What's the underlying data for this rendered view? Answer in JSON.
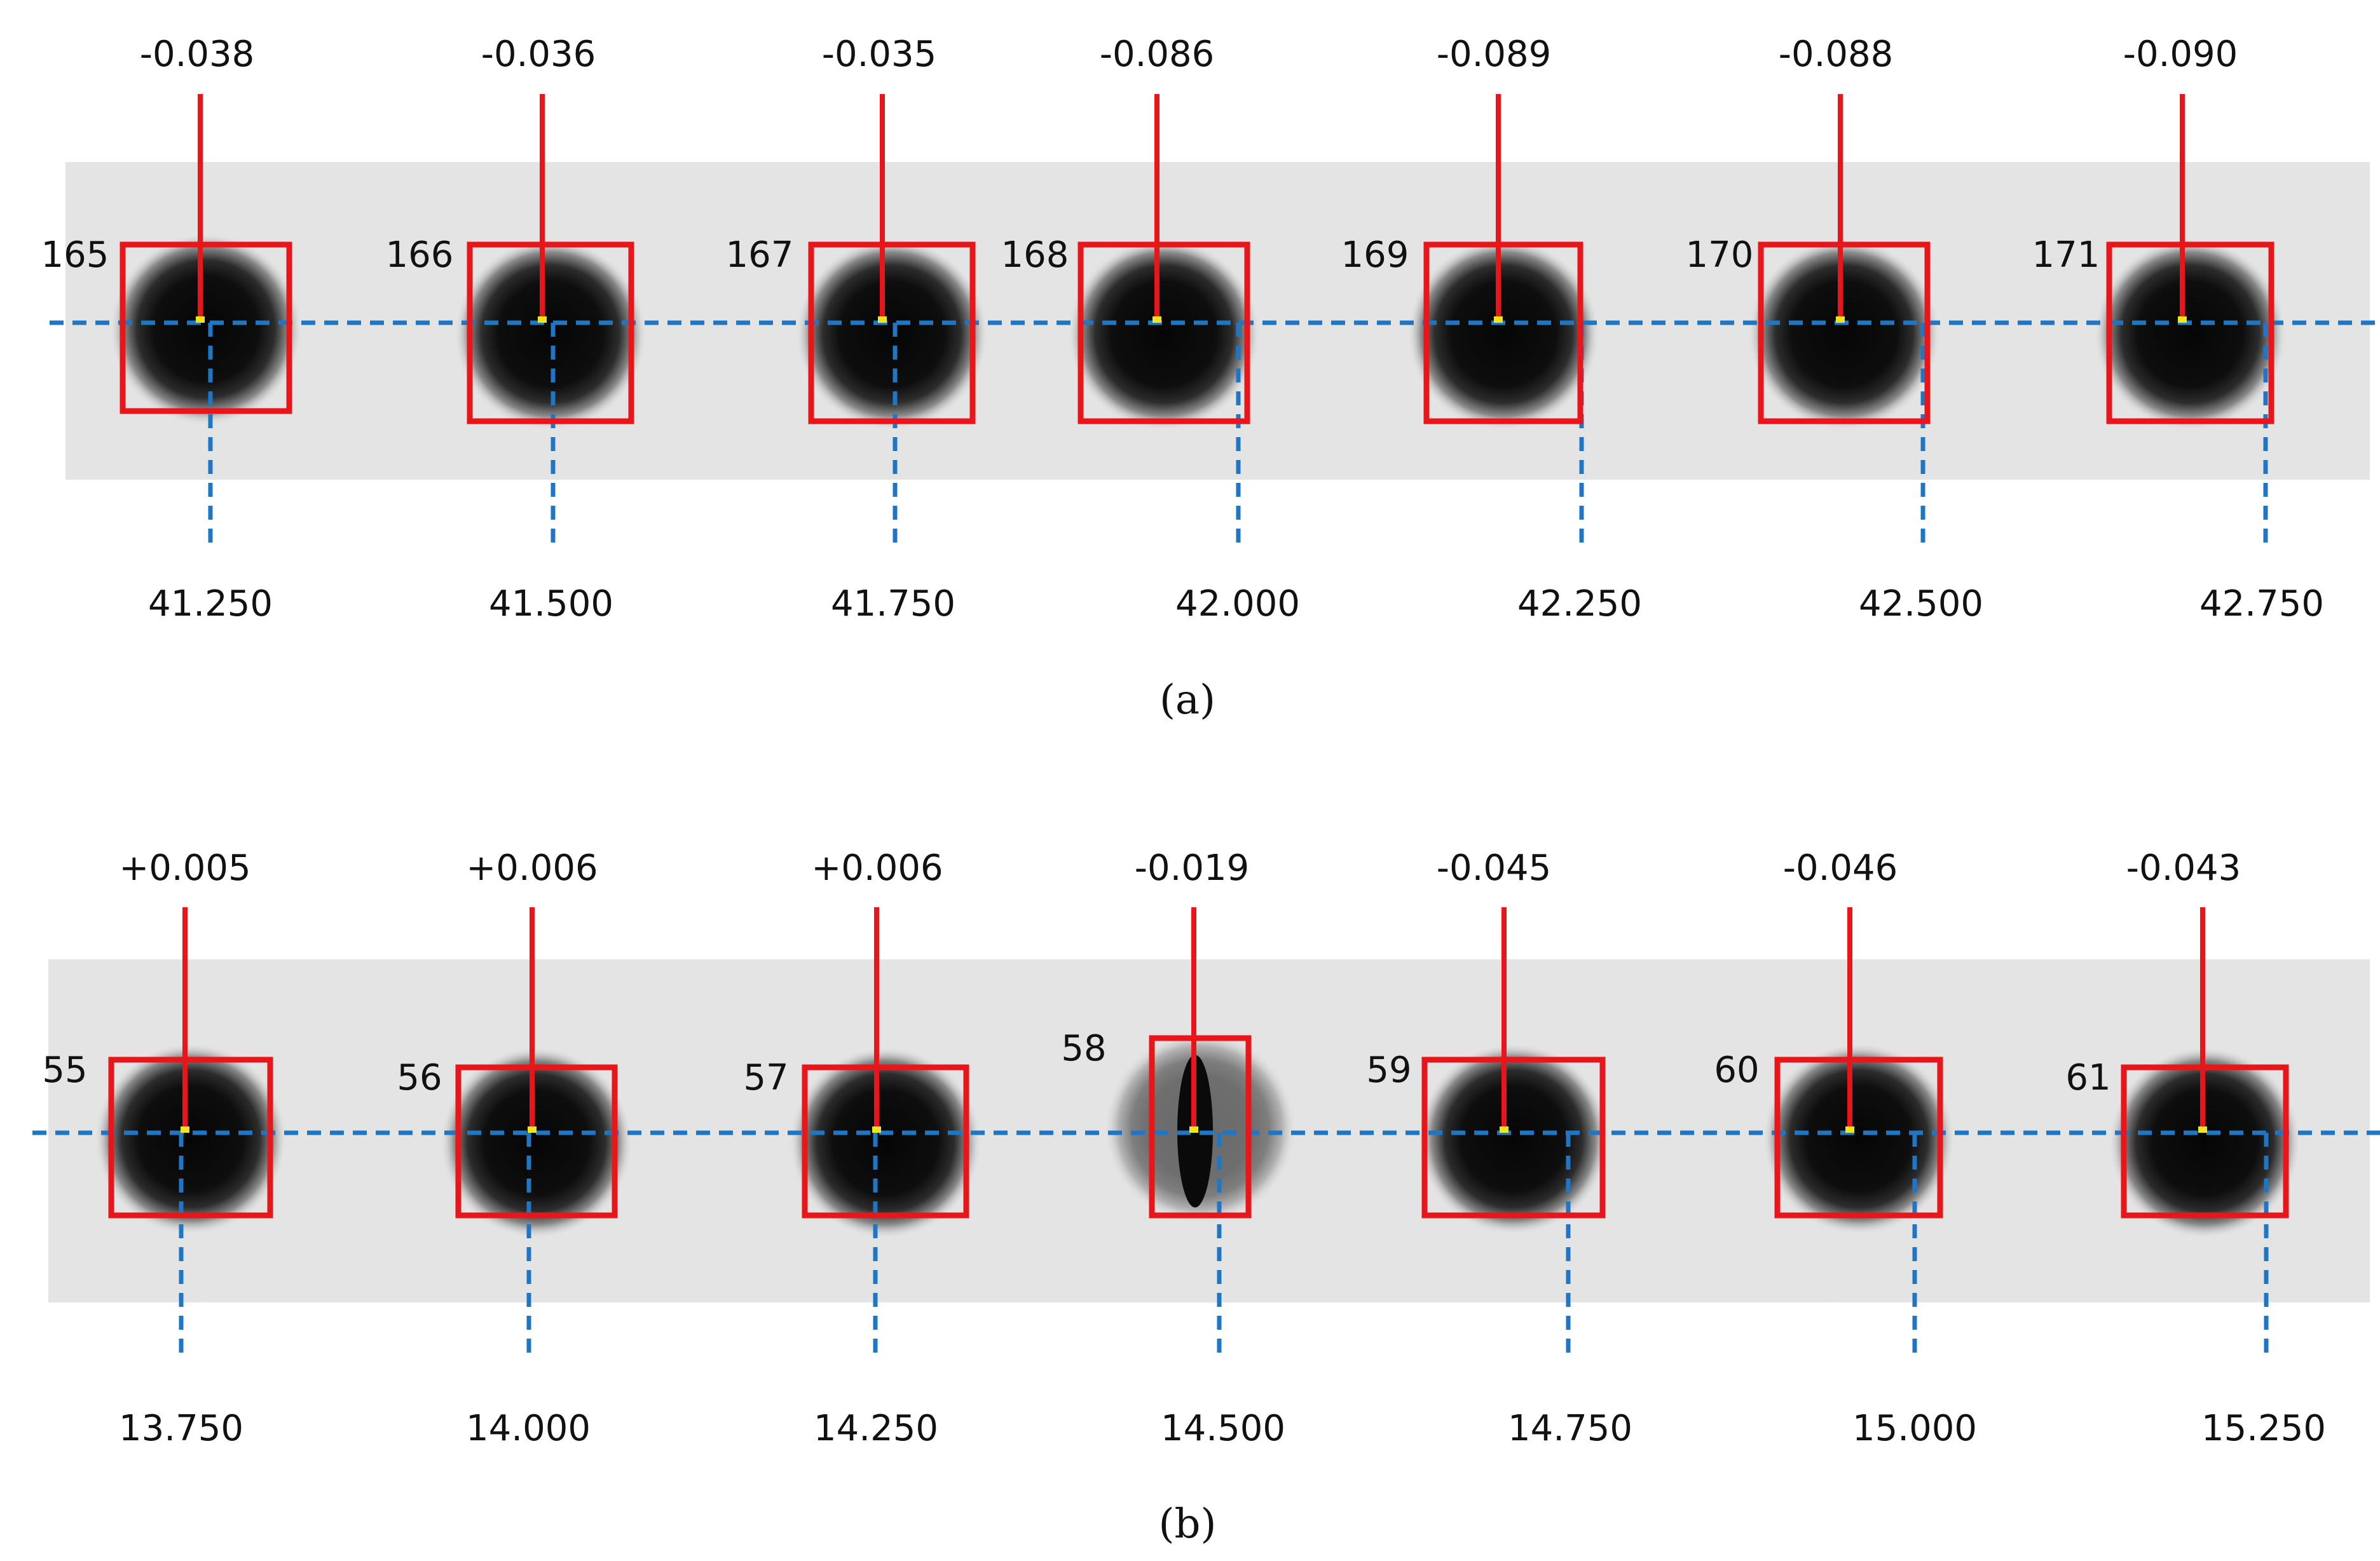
{
  "colors": {
    "box": "#e8161b",
    "dash": "#1f77c4",
    "centroid": "#f2e41a",
    "strip_bg": "#e2e2e2",
    "blob": "#0a0a0a",
    "text": "#111111"
  },
  "panels": [
    {
      "id": "a",
      "caption": "(a)",
      "items": [
        {
          "index": "165",
          "delta": "-0.038",
          "position": "41.250"
        },
        {
          "index": "166",
          "delta": "-0.036",
          "position": "41.500"
        },
        {
          "index": "167",
          "delta": "-0.035",
          "position": "41.750"
        },
        {
          "index": "168",
          "delta": "-0.086",
          "position": "42.000"
        },
        {
          "index": "169",
          "delta": "-0.089",
          "position": "42.250"
        },
        {
          "index": "170",
          "delta": "-0.088",
          "position": "42.500"
        },
        {
          "index": "171",
          "delta": "-0.090",
          "position": "42.750"
        }
      ]
    },
    {
      "id": "b",
      "caption": "(b)",
      "items": [
        {
          "index": "55",
          "delta": "+0.005",
          "position": "13.750"
        },
        {
          "index": "56",
          "delta": "+0.006",
          "position": "14.000"
        },
        {
          "index": "57",
          "delta": "+0.006",
          "position": "14.250"
        },
        {
          "index": "58",
          "delta": "-0.019",
          "position": "14.500"
        },
        {
          "index": "59",
          "delta": "-0.045",
          "position": "14.750"
        },
        {
          "index": "60",
          "delta": "-0.046",
          "position": "15.000"
        },
        {
          "index": "61",
          "delta": "-0.043",
          "position": "15.250"
        }
      ]
    }
  ]
}
